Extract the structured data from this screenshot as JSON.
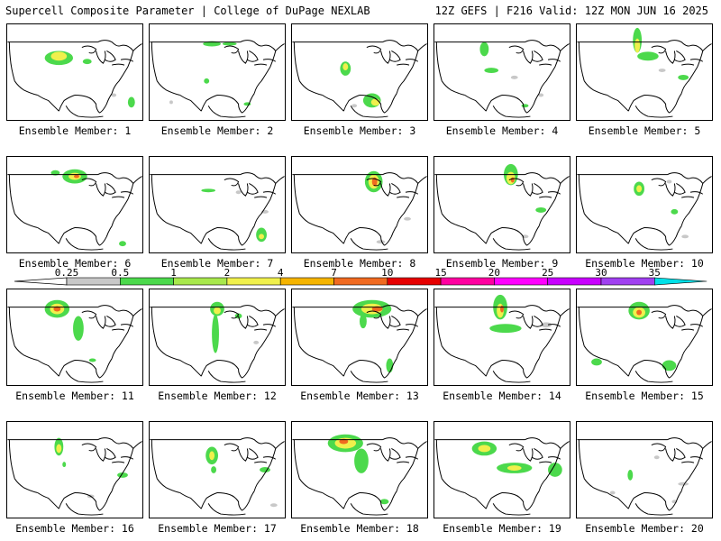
{
  "header": {
    "left_title": "Supercell Composite Parameter | College of DuPage NEXLAB",
    "right_title": "12Z GEFS | F216 Valid: 12Z MON JUN 16 2025"
  },
  "colorbar": {
    "ticks": [
      "0.25",
      "0.5",
      "1",
      "2",
      "4",
      "7",
      "10",
      "15",
      "20",
      "25",
      "30",
      "35"
    ],
    "colors": [
      "#c8c8c8",
      "#4cd94c",
      "#a8e84c",
      "#f0f04c",
      "#f5b400",
      "#f06a20",
      "#e60000",
      "#ff00a0",
      "#ff00ff",
      "#c800ff",
      "#a040f0",
      "#00e0e8"
    ]
  },
  "members": [
    {
      "label": "Ensemble Member: 1"
    },
    {
      "label": "Ensemble Member: 2"
    },
    {
      "label": "Ensemble Member: 3"
    },
    {
      "label": "Ensemble Member: 4"
    },
    {
      "label": "Ensemble Member: 5"
    },
    {
      "label": "Ensemble Member: 6"
    },
    {
      "label": "Ensemble Member: 7"
    },
    {
      "label": "Ensemble Member: 8"
    },
    {
      "label": "Ensemble Member: 9"
    },
    {
      "label": "Ensemble Member: 10"
    },
    {
      "label": "Ensemble Member: 11"
    },
    {
      "label": "Ensemble Member: 12"
    },
    {
      "label": "Ensemble Member: 13"
    },
    {
      "label": "Ensemble Member: 14"
    },
    {
      "label": "Ensemble Member: 15"
    },
    {
      "label": "Ensemble Member: 16"
    },
    {
      "label": "Ensemble Member: 17"
    },
    {
      "label": "Ensemble Member: 18"
    },
    {
      "label": "Ensemble Member: 19"
    },
    {
      "label": "Ensemble Member: 20"
    }
  ]
}
